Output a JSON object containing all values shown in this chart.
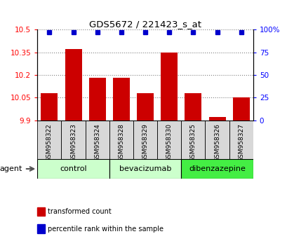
{
  "title": "GDS5672 / 221423_s_at",
  "samples": [
    "GSM958322",
    "GSM958323",
    "GSM958324",
    "GSM958328",
    "GSM958329",
    "GSM958330",
    "GSM958325",
    "GSM958326",
    "GSM958327"
  ],
  "transformed_counts": [
    10.08,
    10.37,
    10.18,
    10.18,
    10.08,
    10.35,
    10.08,
    9.92,
    10.05
  ],
  "percentile_ranks": [
    97,
    97,
    97,
    97,
    97,
    97,
    97,
    97,
    97
  ],
  "groups": [
    {
      "label": "control",
      "indices": [
        0,
        1,
        2
      ],
      "color": "#ccffcc"
    },
    {
      "label": "bevacizumab",
      "indices": [
        3,
        4,
        5
      ],
      "color": "#ccffcc"
    },
    {
      "label": "dibenzazepine",
      "indices": [
        6,
        7,
        8
      ],
      "color": "#44ee44"
    }
  ],
  "ylim_left": [
    9.9,
    10.5
  ],
  "ylim_right": [
    0,
    100
  ],
  "yticks_left": [
    9.9,
    10.05,
    10.2,
    10.35,
    10.5
  ],
  "ytick_labels_left": [
    "9.9",
    "10.05",
    "10.2",
    "10.35",
    "10.5"
  ],
  "yticks_right": [
    0,
    25,
    50,
    75,
    100
  ],
  "ytick_labels_right": [
    "0",
    "25",
    "50",
    "75",
    "100%"
  ],
  "bar_color": "#cc0000",
  "dot_color": "#0000cc",
  "bar_bottom": 9.9,
  "legend_items": [
    "transformed count",
    "percentile rank within the sample"
  ],
  "legend_colors": [
    "#cc0000",
    "#0000cc"
  ],
  "agent_label": "agent",
  "col_bg_color": "#d8d8d8",
  "fig_width": 4.1,
  "fig_height": 3.54,
  "dpi": 100
}
